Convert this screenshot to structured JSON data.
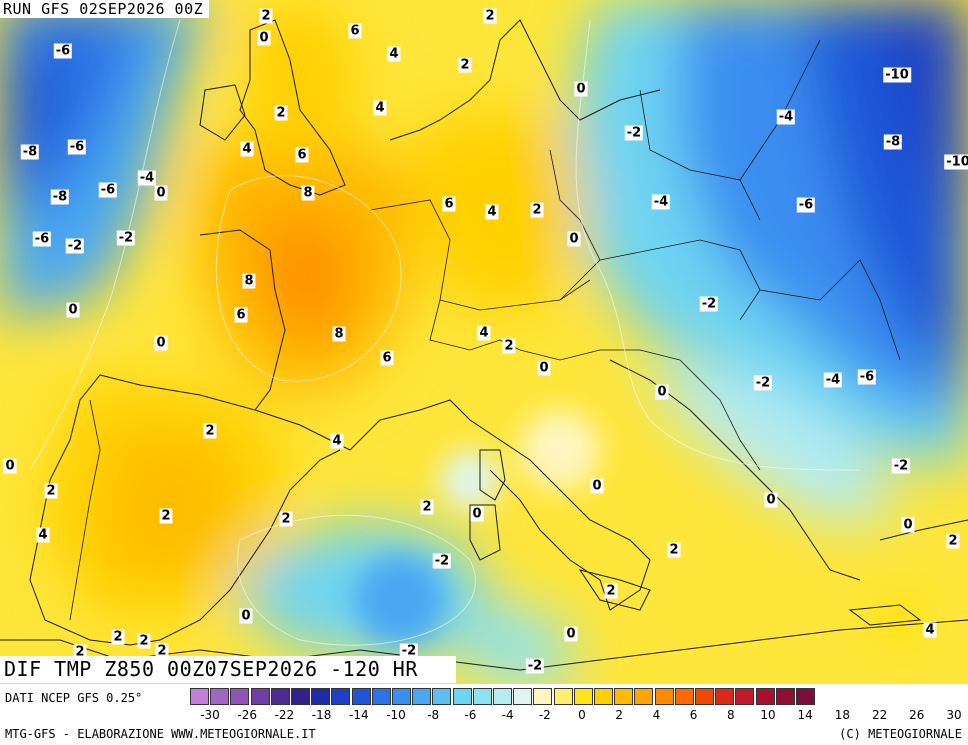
{
  "header": {
    "run_label": "RUN GFS 02SEP2026 00Z"
  },
  "title": {
    "text": "DIF TMP Z850 00Z07SEP2026 -120 HR"
  },
  "footer": {
    "source": "DATI NCEP GFS 0.25°",
    "credit_left": "MTG-GFS - ELABORAZIONE WWW.METEOGIORNALE.IT",
    "credit_right": "(C) METEOGIORNALE"
  },
  "legend": {
    "colors": [
      "#c17fd8",
      "#a165c4",
      "#8e54b6",
      "#6f3fa3",
      "#4b2b8f",
      "#33208a",
      "#1f2aa8",
      "#1f3fc4",
      "#1f56d8",
      "#2b73e6",
      "#3a8ef0",
      "#4aa7f2",
      "#5bbff2",
      "#6ed4f2",
      "#8fe2f2",
      "#b5ecf2",
      "#dff5f0",
      "#fff6c2",
      "#fff06b",
      "#ffe41a",
      "#ffd000",
      "#ffbb00",
      "#ffa400",
      "#ff8c00",
      "#ff6a00",
      "#f04a00",
      "#dc2a1a",
      "#c2182a",
      "#a8102f",
      "#901035",
      "#7c0f3a"
    ],
    "ticks": [
      "-30",
      "-26",
      "-22",
      "-18",
      "-14",
      "-10",
      "-8",
      "-6",
      "-4",
      "-2",
      "0",
      "2",
      "4",
      "6",
      "8",
      "10",
      "14",
      "18",
      "22",
      "26",
      "30"
    ]
  },
  "contour_labels": [
    {
      "v": "2"
    },
    {
      "v": "0"
    },
    {
      "v": "6"
    },
    {
      "v": "4"
    },
    {
      "v": "2"
    },
    {
      "v": "2"
    },
    {
      "v": "-6"
    },
    {
      "v": "0"
    },
    {
      "v": "-10"
    },
    {
      "v": "2"
    },
    {
      "v": "4"
    },
    {
      "v": "-4"
    },
    {
      "v": "-2"
    },
    {
      "v": "-8"
    },
    {
      "v": "-6"
    },
    {
      "v": "4"
    },
    {
      "v": "6"
    },
    {
      "v": "-8"
    },
    {
      "v": "-10"
    },
    {
      "v": "-4"
    },
    {
      "v": "0"
    },
    {
      "v": "-6"
    },
    {
      "v": "8"
    },
    {
      "v": "-8"
    },
    {
      "v": "6"
    },
    {
      "v": "4"
    },
    {
      "v": "2"
    },
    {
      "v": "-4"
    },
    {
      "v": "-6"
    },
    {
      "v": "-6"
    },
    {
      "v": "-2"
    },
    {
      "v": "-2"
    },
    {
      "v": "0"
    },
    {
      "v": "8"
    },
    {
      "v": "0"
    },
    {
      "v": "6"
    },
    {
      "v": "-2"
    },
    {
      "v": "8"
    },
    {
      "v": "0"
    },
    {
      "v": "6"
    },
    {
      "v": "4"
    },
    {
      "v": "2"
    },
    {
      "v": "0"
    },
    {
      "v": "-2"
    },
    {
      "v": "-4"
    },
    {
      "v": "-6"
    },
    {
      "v": "0"
    },
    {
      "v": "2"
    },
    {
      "v": "4"
    },
    {
      "v": "0"
    },
    {
      "v": "-2"
    },
    {
      "v": "2"
    },
    {
      "v": "0"
    },
    {
      "v": "2"
    },
    {
      "v": "0"
    },
    {
      "v": "0"
    },
    {
      "v": "4"
    },
    {
      "v": "2"
    },
    {
      "v": "2"
    },
    {
      "v": "-2"
    },
    {
      "v": "2"
    },
    {
      "v": "2"
    },
    {
      "v": "0"
    },
    {
      "v": "2"
    },
    {
      "v": "2"
    },
    {
      "v": "0"
    },
    {
      "v": "2"
    },
    {
      "v": "-2"
    },
    {
      "v": "0"
    },
    {
      "v": "4"
    },
    {
      "v": "2"
    },
    {
      "v": "2"
    },
    {
      "v": "-2"
    }
  ]
}
